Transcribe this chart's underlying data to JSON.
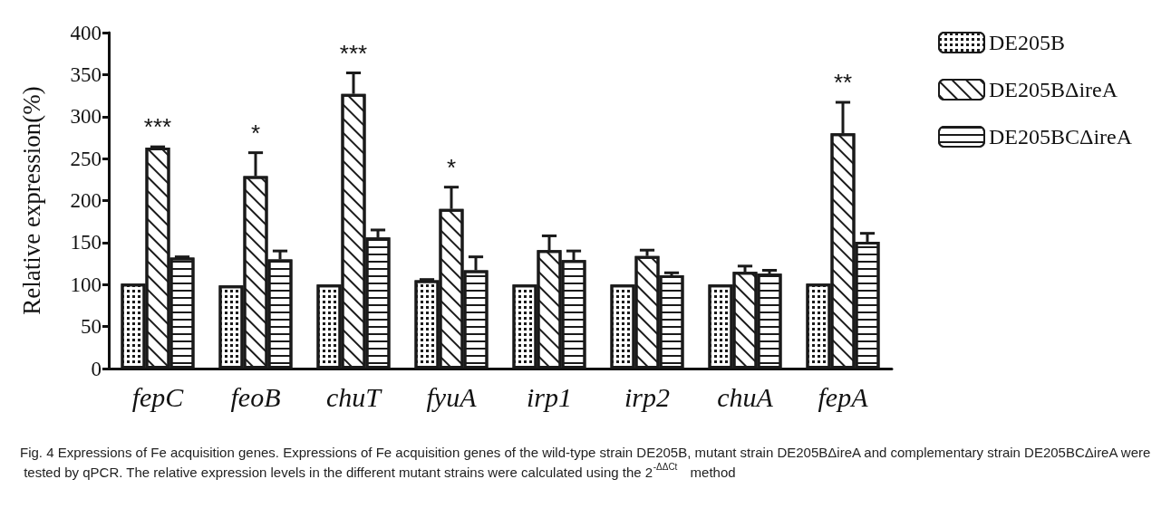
{
  "chart_data": {
    "type": "bar",
    "ylabel": "Relative expression(%)",
    "categories": [
      "fepC",
      "feoB",
      "chuT",
      "fyuA",
      "irp1",
      "irp2",
      "chuA",
      "fepA"
    ],
    "series": [
      {
        "name": "DE205B",
        "color": "#1a1a1a",
        "values": [
          101,
          99,
          100,
          105,
          100,
          100,
          100,
          101
        ],
        "errors": [
          null,
          null,
          null,
          1,
          null,
          null,
          null,
          null
        ]
      },
      {
        "name": "DE205BΔireA",
        "color": "#1a1a1a",
        "values": [
          263,
          229,
          327,
          190,
          141,
          134,
          115,
          280
        ],
        "errors": [
          1,
          28,
          25,
          26,
          17,
          7,
          7,
          37
        ]
      },
      {
        "name": "DE205BCΔireA",
        "color": "#1a1a1a",
        "values": [
          132,
          130,
          156,
          117,
          129,
          111,
          113,
          151
        ],
        "errors": [
          1,
          10,
          9,
          16,
          11,
          3,
          4,
          10
        ]
      }
    ],
    "ylim": [
      0,
      400
    ],
    "yticks": [
      0,
      50,
      100,
      150,
      200,
      250,
      300,
      350,
      400
    ],
    "grid": false,
    "legend": "top right",
    "annotations": [
      {
        "text": "***",
        "x": "fepC",
        "y": 263
      },
      {
        "text": "*",
        "x": "feoB",
        "y": 229
      },
      {
        "text": "***",
        "x": "chuT",
        "y": 327
      },
      {
        "text": "*",
        "x": "fyuA",
        "y": 190
      },
      {
        "text": "**",
        "x": "fepA",
        "y": 280
      },
      "Fig. 4 Expressions of Fe acquisition genes. Expressions of Fe acquisition genes of the wild-type strain DE205B, mutant strain DE205BΔireA and complementary strain DE205BCΔireA were tested by qPCR. The relative expression levels in the different mutant strains were calculated using the 2$^{-ΔΔCt}$ method"
    ]
  }
}
